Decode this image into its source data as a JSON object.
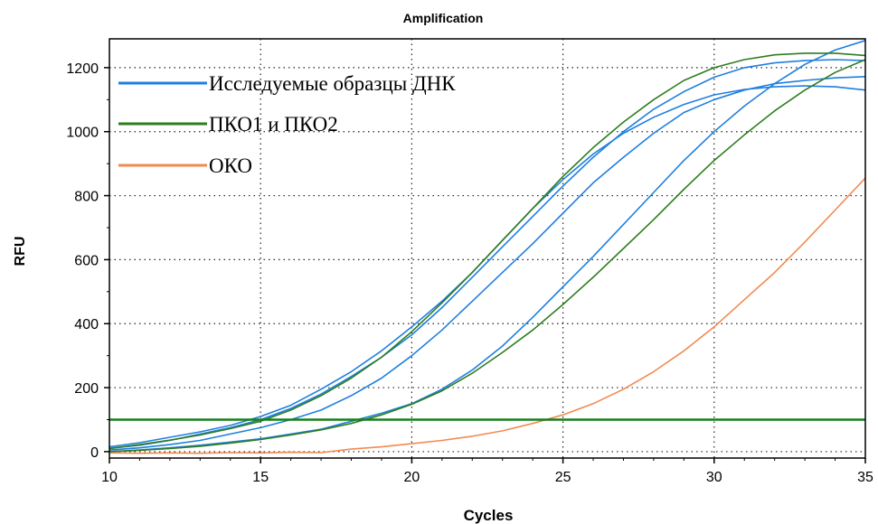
{
  "chart_data": {
    "type": "line",
    "title": "Amplification",
    "xlabel": "Cycles",
    "ylabel": "RFU",
    "xlim": [
      10,
      35
    ],
    "ylim": [
      -20,
      1290
    ],
    "xticks": [
      10,
      15,
      20,
      25,
      30,
      35
    ],
    "yticks": [
      0,
      200,
      400,
      600,
      800,
      1000,
      1200
    ],
    "grid": true,
    "legend_position": "top-left",
    "legend": [
      {
        "label": "Исследуемые образцы ДНК",
        "color": "#1f7fe0"
      },
      {
        "label": "ПКО1 и ПКО2",
        "color": "#2e7d1e"
      },
      {
        "label": "ОКО",
        "color": "#f28a50"
      }
    ],
    "threshold": {
      "value": 100,
      "color": "#16801c"
    },
    "x": [
      10,
      11,
      12,
      13,
      14,
      15,
      16,
      17,
      18,
      19,
      20,
      21,
      22,
      23,
      24,
      25,
      26,
      27,
      28,
      29,
      30,
      31,
      32,
      33,
      34,
      35
    ],
    "series": [
      {
        "group": "Исследуемые образцы ДНК",
        "color": "#1f7fe0",
        "values": [
          15,
          28,
          45,
          62,
          82,
          110,
          145,
          195,
          250,
          315,
          390,
          470,
          560,
          660,
          760,
          850,
          930,
          995,
          1045,
          1085,
          1115,
          1132,
          1140,
          1143,
          1140,
          1130
        ]
      },
      {
        "group": "Исследуемые образцы ДНК",
        "color": "#1f7fe0",
        "values": [
          5,
          12,
          22,
          35,
          55,
          75,
          100,
          130,
          175,
          230,
          300,
          380,
          470,
          560,
          650,
          745,
          840,
          920,
          995,
          1060,
          1100,
          1130,
          1150,
          1160,
          1168,
          1172
        ]
      },
      {
        "group": "Исследуемые образцы ДНК",
        "color": "#1f7fe0",
        "values": [
          0,
          5,
          12,
          20,
          30,
          40,
          55,
          70,
          95,
          120,
          150,
          195,
          255,
          330,
          420,
          515,
          610,
          710,
          810,
          910,
          1000,
          1080,
          1150,
          1210,
          1255,
          1285
        ]
      },
      {
        "group": "Исследуемые образцы ДНК",
        "color": "#1f7fe0",
        "values": [
          10,
          20,
          35,
          55,
          75,
          100,
          135,
          180,
          235,
          295,
          365,
          450,
          545,
          640,
          735,
          830,
          920,
          1000,
          1070,
          1125,
          1170,
          1200,
          1215,
          1222,
          1225,
          1222
        ]
      },
      {
        "group": "ПКО1 и ПКО2",
        "color": "#2e7d1e",
        "values": [
          10,
          22,
          36,
          52,
          72,
          95,
          130,
          175,
          230,
          295,
          375,
          465,
          560,
          660,
          760,
          860,
          950,
          1030,
          1100,
          1160,
          1200,
          1225,
          1240,
          1245,
          1245,
          1238
        ]
      },
      {
        "group": "ПКО1 и ПКО2",
        "color": "#2e7d1e",
        "values": [
          0,
          4,
          10,
          17,
          27,
          38,
          52,
          68,
          88,
          115,
          148,
          190,
          245,
          310,
          380,
          460,
          545,
          635,
          725,
          820,
          910,
          990,
          1065,
          1130,
          1185,
          1225
        ]
      },
      {
        "group": "ОКО",
        "color": "#f28a50",
        "values": [
          -4,
          -5,
          -4,
          -5,
          -3,
          -4,
          -2,
          -3,
          8,
          15,
          25,
          35,
          48,
          65,
          88,
          115,
          150,
          195,
          250,
          315,
          390,
          475,
          560,
          655,
          755,
          855
        ]
      }
    ]
  }
}
